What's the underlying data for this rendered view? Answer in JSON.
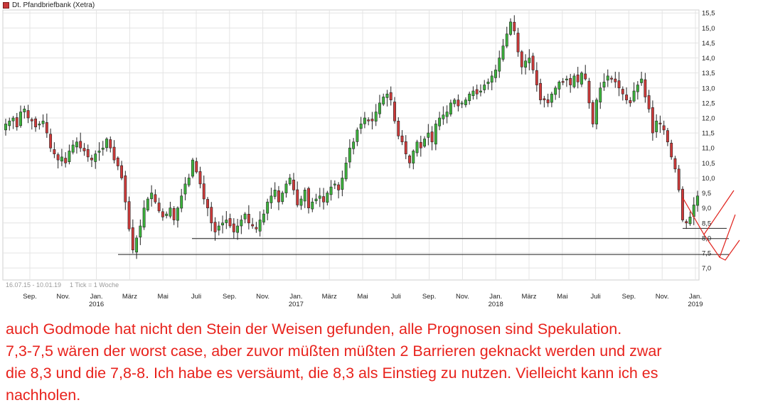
{
  "chart_data": {
    "type": "candlestick",
    "title": "Dt. Pfandbriefbank (Xetra)",
    "range_label": "16.07.15 - 10.01.19",
    "interval_label": "1 Tick = 1 Woche",
    "ylim": [
      6.6,
      15.6
    ],
    "yticks": [
      "7,0",
      "7,5",
      "8,0",
      "8,5",
      "9,0",
      "9,5",
      "10,0",
      "10,5",
      "11,0",
      "11,5",
      "12,0",
      "12,5",
      "13,0",
      "13,5",
      "14,0",
      "14,5",
      "15,0",
      "15,5"
    ],
    "xticks": [
      {
        "label": "Sep.",
        "year": ""
      },
      {
        "label": "Nov.",
        "year": ""
      },
      {
        "label": "Jan.",
        "year": "2016"
      },
      {
        "label": "März",
        "year": ""
      },
      {
        "label": "Mai",
        "year": ""
      },
      {
        "label": "Juli",
        "year": ""
      },
      {
        "label": "Sep.",
        "year": ""
      },
      {
        "label": "Nov.",
        "year": ""
      },
      {
        "label": "Jan.",
        "year": "2017"
      },
      {
        "label": "März",
        "year": ""
      },
      {
        "label": "Mai",
        "year": ""
      },
      {
        "label": "Juli",
        "year": ""
      },
      {
        "label": "Sep.",
        "year": ""
      },
      {
        "label": "Nov.",
        "year": ""
      },
      {
        "label": "Jan.",
        "year": "2018"
      },
      {
        "label": "März",
        "year": ""
      },
      {
        "label": "Mai",
        "year": ""
      },
      {
        "label": "Juli",
        "year": ""
      },
      {
        "label": "Sep.",
        "year": ""
      },
      {
        "label": "Nov.",
        "year": ""
      },
      {
        "label": "Jan.",
        "year": "2019"
      }
    ],
    "closes": [
      11.8,
      11.9,
      12.0,
      11.7,
      12.2,
      12.3,
      12.0,
      11.9,
      11.7,
      11.8,
      11.9,
      11.5,
      11.0,
      10.8,
      10.6,
      10.7,
      10.5,
      10.9,
      11.1,
      11.2,
      11.0,
      10.9,
      10.7,
      10.6,
      10.8,
      10.9,
      11.0,
      11.3,
      11.0,
      10.6,
      10.4,
      10.0,
      9.2,
      8.3,
      7.6,
      8.0,
      8.4,
      9.0,
      9.3,
      9.5,
      9.2,
      8.9,
      8.7,
      8.8,
      9.0,
      8.6,
      9.0,
      9.4,
      9.8,
      10.0,
      10.6,
      10.2,
      9.8,
      9.3,
      9.0,
      8.5,
      8.2,
      8.4,
      8.5,
      8.6,
      8.4,
      8.2,
      8.4,
      8.6,
      8.8,
      8.5,
      8.4,
      8.3,
      8.6,
      8.8,
      9.2,
      9.4,
      9.6,
      9.2,
      9.5,
      9.8,
      10.0,
      9.6,
      9.1,
      9.3,
      9.6,
      9.0,
      9.2,
      9.3,
      9.4,
      9.2,
      9.5,
      9.7,
      9.8,
      9.6,
      10.0,
      10.5,
      11.0,
      11.2,
      11.6,
      11.8,
      12.0,
      11.9,
      11.9,
      12.2,
      12.5,
      12.7,
      12.8,
      12.6,
      11.9,
      11.4,
      11.2,
      10.8,
      10.5,
      10.9,
      11.2,
      11.0,
      11.3,
      11.5,
      11.2,
      11.8,
      12.0,
      12.1,
      12.2,
      12.5,
      12.6,
      12.4,
      12.5,
      12.6,
      12.8,
      12.9,
      12.8,
      12.9,
      13.1,
      13.2,
      13.4,
      13.6,
      14.0,
      14.4,
      14.8,
      15.2,
      14.9,
      14.2,
      13.7,
      13.9,
      14.0,
      13.6,
      13.1,
      12.6,
      12.6,
      12.5,
      12.8,
      13.0,
      13.2,
      13.2,
      13.3,
      13.1,
      13.4,
      13.2,
      13.5,
      13.3,
      12.5,
      11.8,
      12.6,
      13.0,
      13.2,
      13.4,
      13.3,
      13.2,
      13.0,
      12.8,
      12.6,
      12.5,
      12.9,
      13.1,
      13.3,
      12.7,
      12.3,
      11.5,
      11.9,
      11.8,
      11.6,
      11.2,
      10.7,
      10.3,
      9.6,
      8.6,
      8.5,
      8.7,
      9.1,
      9.4
    ]
  },
  "comment": {
    "lines": [
      "auch Godmode hat nicht den Stein der Weisen gefunden, alle Prognosen sind Spekulation.",
      "7,3-7,5 wären der worst case, aber zuvor müßten müßten 2 Barrieren geknackt werden und zwar",
      "die 8,3 und die 7,8-8. Ich habe es versäumt, die 8,3 als Einstieg zu nutzen. Vielleicht kann ich es",
      "nachholen."
    ]
  },
  "colors": {
    "up": "#3cb43c",
    "down": "#d03a3a",
    "wick": "#222222",
    "grid": "#e4e4e4",
    "line": "#222222",
    "arrow": "#e0221c",
    "text": "#e8221c"
  }
}
